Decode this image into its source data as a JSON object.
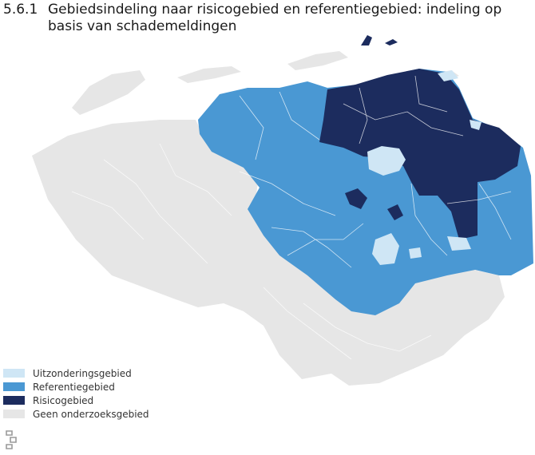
{
  "figure": {
    "number": "5.6.1",
    "title": "Gebiedsindeling naar risicogebied en referentiegebied: indeling op basis van schademeldingen"
  },
  "colors": {
    "uitzondering": "#cfe6f5",
    "referentie": "#4a98d3",
    "risico": "#1c2c5e",
    "geen": "#e6e6e6",
    "borders": "#ffffff"
  },
  "legend": {
    "items": [
      {
        "key": "uitzondering",
        "label": "Uitzonderingsgebied"
      },
      {
        "key": "referentie",
        "label": "Referentiegebied"
      },
      {
        "key": "risico",
        "label": "Risicogebied"
      },
      {
        "key": "geen",
        "label": "Geen onderzoeksgebied"
      }
    ]
  },
  "logo": {
    "name": "cbs-logo"
  }
}
